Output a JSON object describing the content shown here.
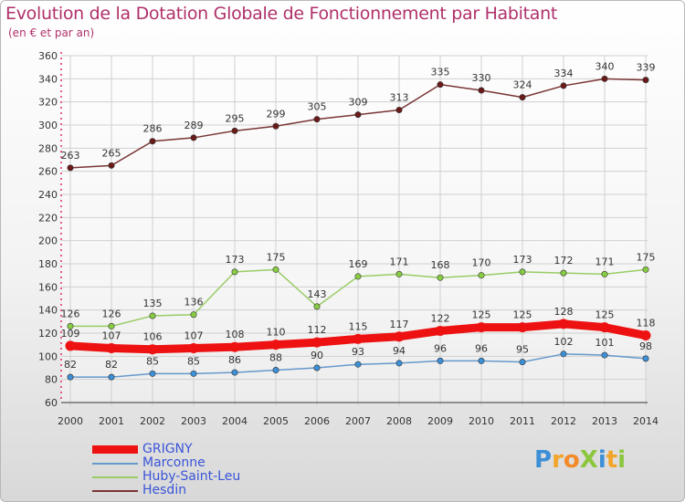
{
  "title": "Evolution de la Dotation Globale de Fonctionnement par Habitant",
  "subtitle": "(en € et par an)",
  "logo": {
    "text": "ProXiti",
    "letters": [
      {
        "ch": "P",
        "color": "#3d8fd6"
      },
      {
        "ch": "r",
        "color": "#f2a52a"
      },
      {
        "ch": "o",
        "color": "#f28a2a"
      },
      {
        "ch": "X",
        "color": "#8cc63e"
      },
      {
        "ch": "i",
        "color": "#3d8fd6"
      },
      {
        "ch": "t",
        "color": "#f2a52a"
      },
      {
        "ch": "i",
        "color": "#8cc63e"
      }
    ]
  },
  "colors": {
    "title": "#b0306a",
    "axis_pink": "#e0306a",
    "grid": "#d0d0d0",
    "legend_text": "#3a55d8"
  },
  "chart_data": {
    "type": "line",
    "title": "Evolution de la Dotation Globale de Fonctionnement par Habitant",
    "subtitle": "(en € et par an)",
    "xlabel": "",
    "ylabel": "",
    "x": [
      "2000",
      "2001",
      "2002",
      "2003",
      "2004",
      "2005",
      "2006",
      "2007",
      "2008",
      "2009",
      "2010",
      "2011",
      "2012",
      "2013",
      "2014"
    ],
    "ylim": [
      60,
      360
    ],
    "yticks": [
      60,
      80,
      100,
      120,
      140,
      160,
      180,
      200,
      220,
      240,
      260,
      280,
      300,
      320,
      340,
      360
    ],
    "grid": true,
    "legend_position": "bottom-left",
    "series": [
      {
        "name": "GRIGNY",
        "color": "#ee1111",
        "marker": "#ee1111",
        "values": [
          109,
          107,
          106,
          107,
          108,
          110,
          112,
          115,
          117,
          122,
          125,
          125,
          128,
          125,
          118
        ]
      },
      {
        "name": "Marconne",
        "color": "#6699cc",
        "marker": "#3d8fd6",
        "values": [
          82,
          82,
          85,
          85,
          86,
          88,
          90,
          93,
          94,
          96,
          96,
          95,
          102,
          101,
          98
        ]
      },
      {
        "name": "Huby-Saint-Leu",
        "color": "#99cc66",
        "marker": "#88cc44",
        "values": [
          126,
          126,
          135,
          136,
          173,
          175,
          143,
          169,
          171,
          168,
          170,
          173,
          172,
          171,
          175
        ]
      },
      {
        "name": "Hesdin",
        "color": "#7a3535",
        "marker": "#6b1a1a",
        "values": [
          263,
          265,
          286,
          289,
          295,
          299,
          305,
          309,
          313,
          335,
          330,
          324,
          334,
          340,
          339
        ]
      }
    ]
  }
}
